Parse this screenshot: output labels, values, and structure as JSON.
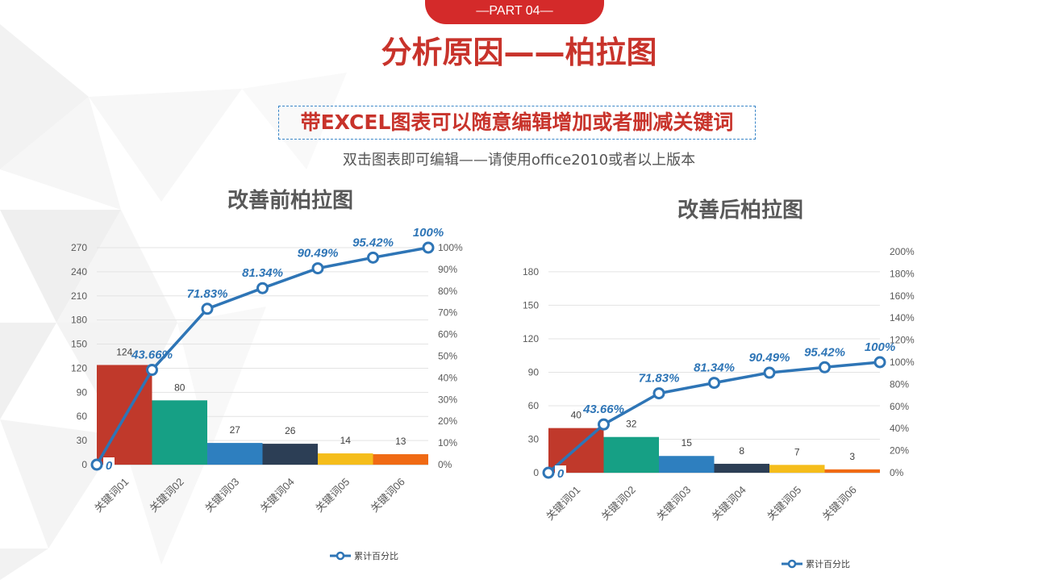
{
  "header": {
    "part_label": "—PART 04—",
    "title": "分析原因——柏拉图",
    "subtitle": "带EXCEL图表可以随意编辑增加或者删减关键词",
    "note": "双击图表即可编辑——请使用office2010或者以上版本"
  },
  "colors": {
    "accent_red": "#c8332b",
    "line_blue": "#2e75b6",
    "bars": [
      "#c0392b",
      "#16a085",
      "#2e7fbf",
      "#2c3e55",
      "#f5bd1b",
      "#f06a14"
    ]
  },
  "chart_data": [
    {
      "type": "bar",
      "title": "改善前柏拉图",
      "categories": [
        "关键词01",
        "关键词02",
        "关键词03",
        "关键词04",
        "关键词05",
        "关键词06"
      ],
      "values": [
        124,
        80,
        27,
        26,
        14,
        13
      ],
      "y_ticks": [
        "0",
        "30",
        "60",
        "90",
        "120",
        "150",
        "180",
        "210",
        "240",
        "270"
      ],
      "ylim": [
        0,
        270
      ],
      "y2_ticks": [
        "0%",
        "10%",
        "20%",
        "30%",
        "40%",
        "50%",
        "60%",
        "70%",
        "80%",
        "90%",
        "100%"
      ],
      "y2lim": [
        0,
        1.0
      ],
      "line_series": {
        "name": "累计百分比",
        "values": [
          0,
          0.4366,
          0.7183,
          0.8134,
          0.9049,
          0.9542,
          1.0
        ],
        "labels": [
          "0",
          "43.66%",
          "71.83%",
          "81.34%",
          "90.49%",
          "95.42%",
          "100%"
        ]
      },
      "legend": "bottom",
      "grid": true
    },
    {
      "type": "bar",
      "title": "改善后柏拉图",
      "categories": [
        "关键词01",
        "关键词02",
        "关键词03",
        "关键词04",
        "关键词05",
        "关键词06"
      ],
      "values": [
        40,
        32,
        15,
        8,
        7,
        3
      ],
      "y_ticks": [
        "0",
        "30",
        "60",
        "90",
        "120",
        "150",
        "180"
      ],
      "ylim": [
        0,
        198
      ],
      "y2_ticks": [
        "0%",
        "20%",
        "40%",
        "60%",
        "80%",
        "100%",
        "120%",
        "140%",
        "160%",
        "180%",
        "200%"
      ],
      "y2lim": [
        0,
        2.0
      ],
      "line_series": {
        "name": "累计百分比",
        "values": [
          0,
          0.4366,
          0.7183,
          0.8134,
          0.9049,
          0.9542,
          1.0
        ],
        "labels": [
          "0",
          "43.66%",
          "71.83%",
          "81.34%",
          "90.49%",
          "95.42%",
          "100%"
        ]
      },
      "legend": "bottom",
      "grid": true
    }
  ]
}
